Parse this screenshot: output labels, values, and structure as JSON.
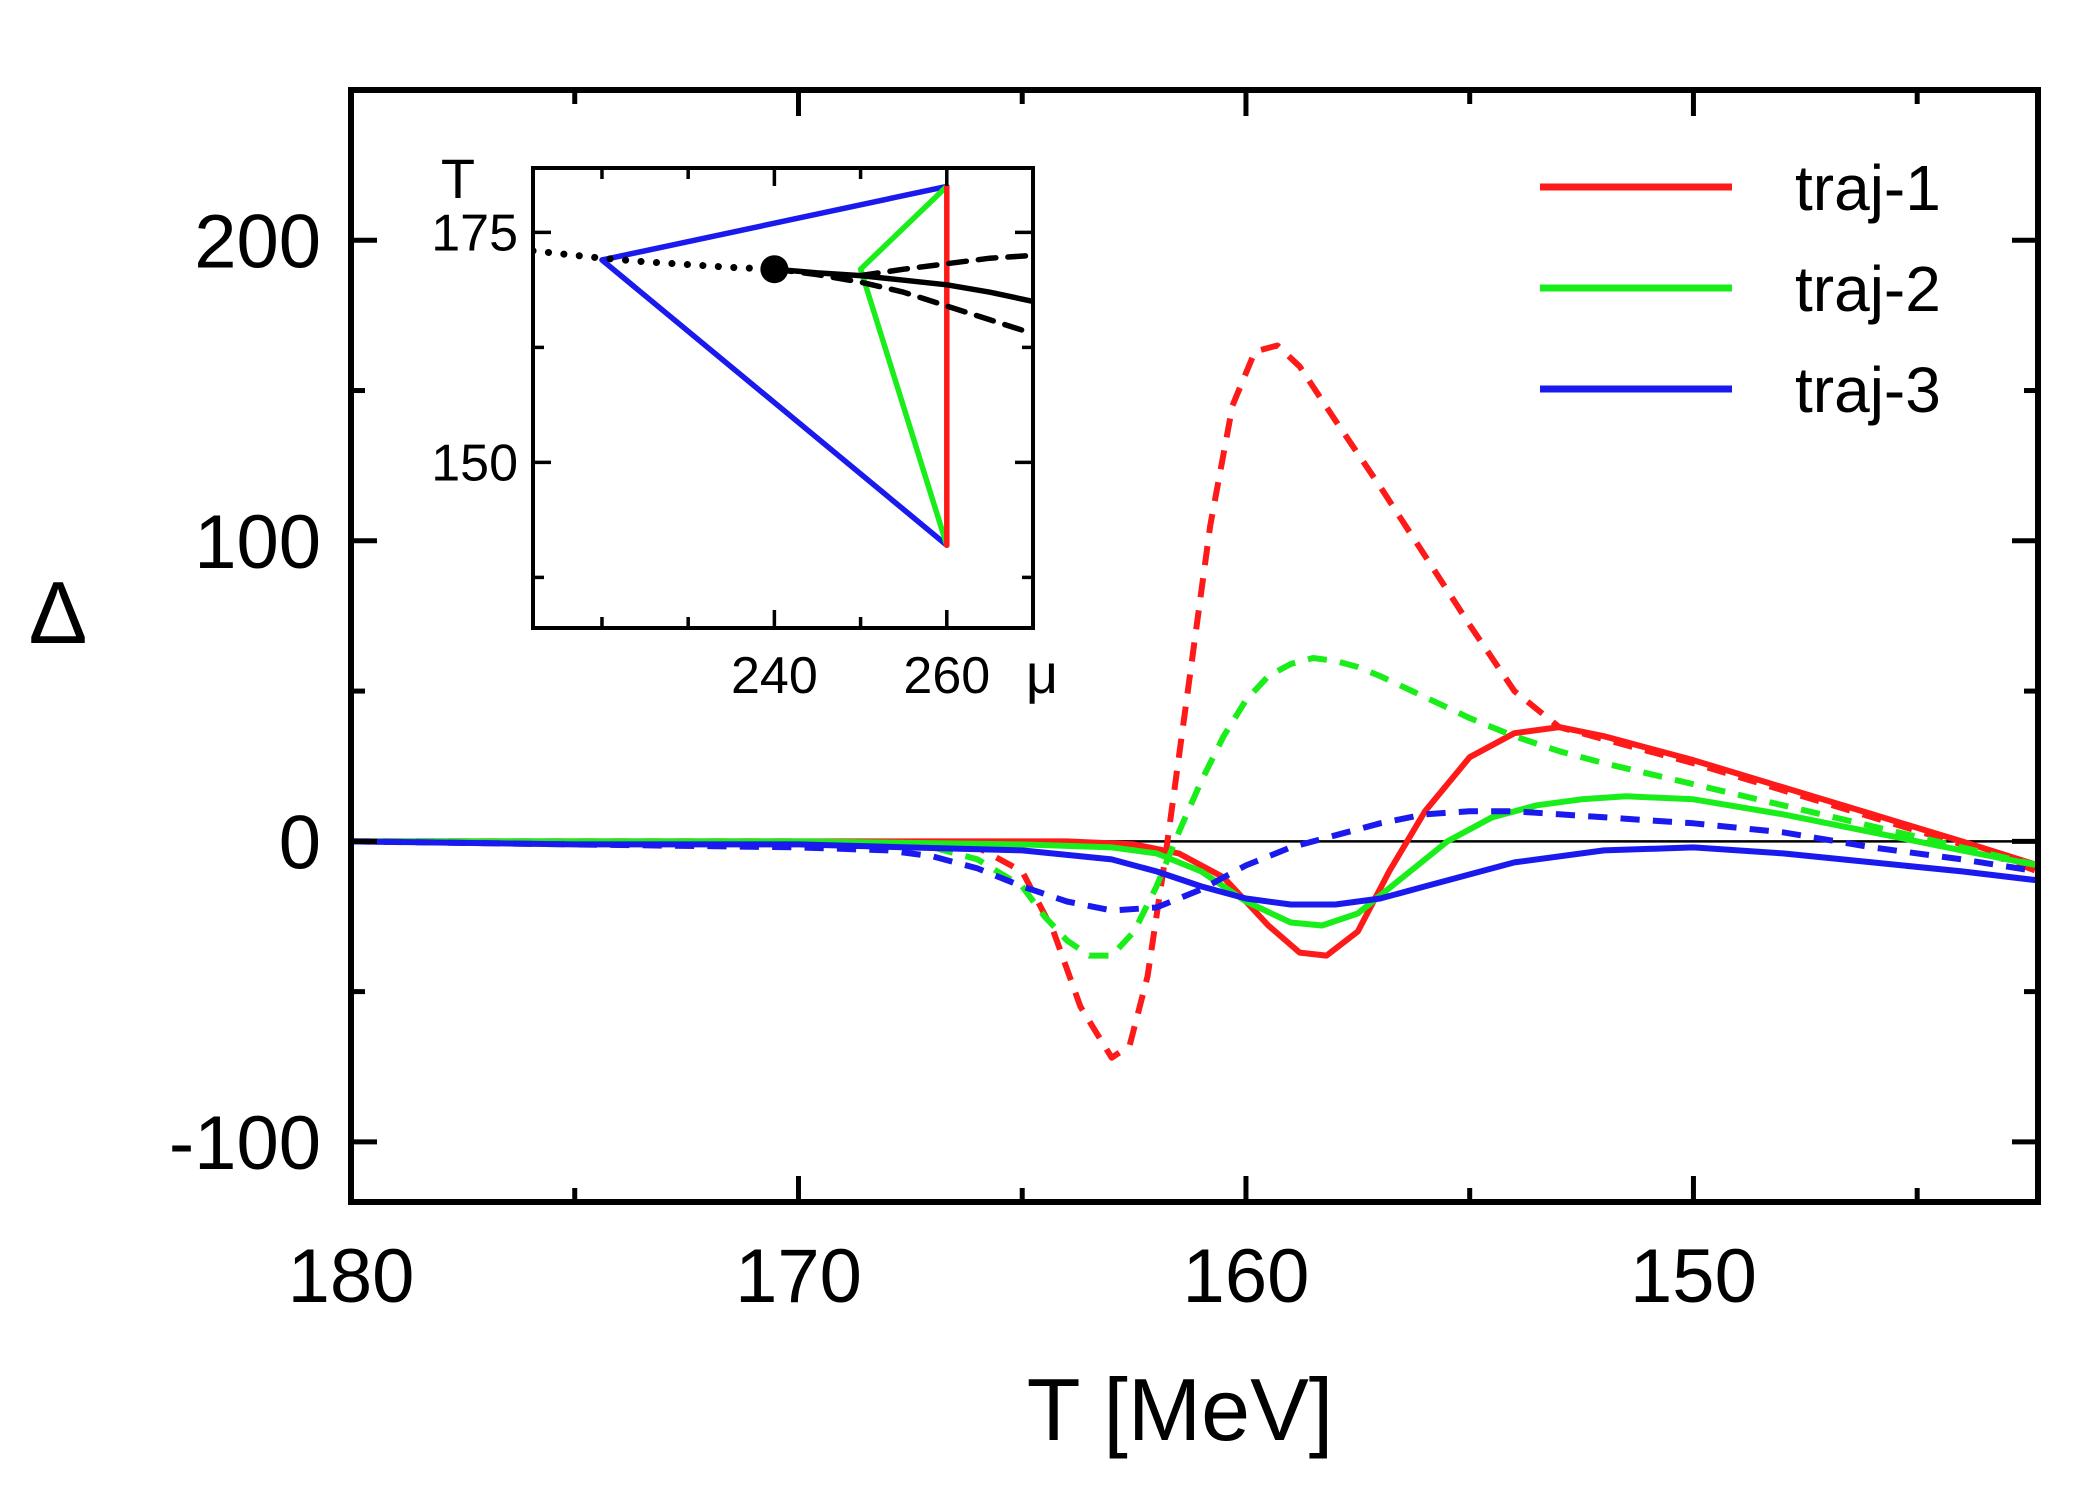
{
  "chart_data": [
    {
      "id": "main",
      "type": "line",
      "xlabel": "T [MeV]",
      "ylabel": "Δ",
      "xlim": [
        180,
        142.3
      ],
      "ylim": [
        -120,
        250
      ],
      "x_ticks": [
        180,
        170,
        160,
        150
      ],
      "x_minor_ticks": [
        175,
        165,
        155,
        145
      ],
      "y_ticks": [
        200,
        100,
        0,
        -100
      ],
      "y_minor_ticks": [
        150,
        50,
        -50
      ],
      "zero_line": true,
      "legend": {
        "position": "top-right",
        "entries": [
          {
            "label": "traj-1",
            "color": "#ff1a1a"
          },
          {
            "label": "traj-2",
            "color": "#1aee1a"
          },
          {
            "label": "traj-3",
            "color": "#1a1aee"
          }
        ]
      },
      "series": [
        {
          "name": "traj-1",
          "style": "solid",
          "color": "#ff1a1a",
          "x": [
            180,
            175,
            170,
            166,
            164,
            162.5,
            161.5,
            160.5,
            159.5,
            158.8,
            158.2,
            157.5,
            156.8,
            156,
            155,
            154,
            153,
            152,
            150,
            148,
            146,
            144,
            142.3
          ],
          "y": [
            0,
            0,
            0,
            0,
            0,
            -1,
            -4,
            -12,
            -28,
            -37,
            -38,
            -30,
            -10,
            10,
            28,
            36,
            38,
            35,
            27,
            18,
            9,
            0,
            -8
          ]
        },
        {
          "name": "traj-1",
          "style": "dashed",
          "color": "#ff1a1a",
          "x": [
            180,
            170,
            166,
            165,
            164.3,
            163.7,
            163,
            162.6,
            162.2,
            161.8,
            161.3,
            160.8,
            160.3,
            159.8,
            159.3,
            158.8,
            158,
            157,
            156,
            155,
            154,
            153,
            152,
            150,
            148,
            146,
            144,
            142.3
          ],
          "y": [
            0,
            0,
            -2,
            -10,
            -30,
            -55,
            -72,
            -68,
            -45,
            -5,
            50,
            105,
            145,
            163,
            165,
            158,
            140,
            118,
            95,
            72,
            50,
            38,
            34,
            26,
            17,
            8,
            -1,
            -10
          ]
        },
        {
          "name": "traj-2",
          "style": "solid",
          "color": "#1aee1a",
          "x": [
            180,
            170,
            165,
            163,
            162,
            161,
            160,
            159,
            158.3,
            157.5,
            156.5,
            155.5,
            154.5,
            153.5,
            152.5,
            151.5,
            150,
            148,
            146,
            144,
            142.3
          ],
          "y": [
            0,
            0,
            -1,
            -2,
            -4,
            -10,
            -20,
            -27,
            -28,
            -24,
            -12,
            0,
            8,
            12,
            14,
            15,
            14,
            9,
            3,
            -3,
            -8
          ]
        },
        {
          "name": "traj-2",
          "style": "dashed",
          "color": "#1aee1a",
          "x": [
            180,
            170,
            167,
            166,
            165,
            164.5,
            164,
            163.5,
            163,
            162.5,
            162,
            161.5,
            161,
            160.5,
            160,
            159.5,
            159,
            158.5,
            158,
            157.5,
            157,
            156,
            155,
            154,
            153,
            152,
            150,
            148,
            146,
            144,
            142.3
          ],
          "y": [
            0,
            -1,
            -2,
            -6,
            -15,
            -25,
            -33,
            -38,
            -38,
            -30,
            -15,
            3,
            20,
            35,
            47,
            55,
            59,
            61,
            60,
            58,
            55,
            48,
            41,
            35,
            30,
            26,
            19,
            12,
            5,
            -2,
            -8
          ]
        },
        {
          "name": "traj-3",
          "style": "solid",
          "color": "#1a1aee",
          "x": [
            180,
            175,
            170,
            165,
            163,
            162,
            161,
            160,
            159,
            158,
            157,
            156,
            155,
            154,
            152,
            150,
            148,
            146,
            144,
            142.3
          ],
          "y": [
            0,
            -1,
            -1,
            -3,
            -6,
            -10,
            -15,
            -19,
            -21,
            -21,
            -19,
            -15,
            -11,
            -7,
            -3,
            -2,
            -4,
            -7,
            -10,
            -13
          ]
        },
        {
          "name": "traj-3",
          "style": "dashed",
          "color": "#1a1aee",
          "x": [
            180,
            170,
            168,
            167,
            166,
            165,
            164,
            163,
            162,
            161,
            160,
            159,
            158,
            157,
            156,
            155,
            154,
            153,
            152,
            150,
            148,
            146,
            144,
            142.3
          ],
          "y": [
            0,
            -2,
            -3,
            -5,
            -9,
            -15,
            -20,
            -23,
            -22,
            -16,
            -8,
            -2,
            2,
            6,
            9,
            10,
            10,
            9,
            8,
            6,
            3,
            -2,
            -6,
            -10
          ]
        }
      ]
    },
    {
      "id": "inset",
      "type": "line",
      "title": "T",
      "xlabel": "μ",
      "ylabel": "T",
      "xlim": [
        212,
        270
      ],
      "ylim": [
        132,
        182
      ],
      "x_ticks": [
        240,
        260
      ],
      "x_minor_ticks": [
        220,
        230,
        250
      ],
      "y_ticks": [
        175,
        150
      ],
      "y_minor_ticks": [
        162.5,
        137.5
      ],
      "series": [
        {
          "name": "traj-3",
          "style": "solid",
          "color": "#1a1aee",
          "x": [
            260,
            220,
            260,
            260
          ],
          "y": [
            180,
            172,
            141,
            141
          ]
        },
        {
          "name": "traj-2",
          "style": "solid",
          "color": "#1aee1a",
          "x": [
            260,
            250,
            260
          ],
          "y": [
            180,
            171,
            141
          ]
        },
        {
          "name": "traj-1",
          "style": "solid",
          "color": "#ff1a1a",
          "x": [
            260,
            260
          ],
          "y": [
            180,
            141
          ]
        },
        {
          "name": "crossover",
          "style": "dotted",
          "color": "#000000",
          "x": [
            212,
            216,
            220,
            225,
            230,
            235,
            240
          ],
          "y": [
            173,
            172.6,
            172.2,
            171.8,
            171.5,
            171.2,
            171
          ]
        },
        {
          "name": "phase-boundary",
          "style": "solid",
          "color": "#000000",
          "x": [
            240,
            245,
            250,
            255,
            260,
            265,
            270
          ],
          "y": [
            171,
            170.6,
            170.3,
            169.8,
            169.3,
            168.5,
            167.5
          ]
        },
        {
          "name": "spinodal-upper",
          "style": "dashed",
          "color": "#000000",
          "x": [
            250,
            255,
            260,
            265,
            270
          ],
          "y": [
            170.3,
            171,
            171.6,
            172.2,
            172.5
          ]
        },
        {
          "name": "spinodal-lower",
          "style": "dashed",
          "color": "#000000",
          "x": [
            240,
            245,
            250,
            255,
            260,
            265,
            270
          ],
          "y": [
            171,
            170.4,
            169.6,
            168.5,
            167,
            165.5,
            164
          ]
        },
        {
          "name": "critical-point",
          "style": "marker",
          "color": "#000000",
          "x": [
            240
          ],
          "y": [
            171
          ]
        }
      ]
    }
  ]
}
